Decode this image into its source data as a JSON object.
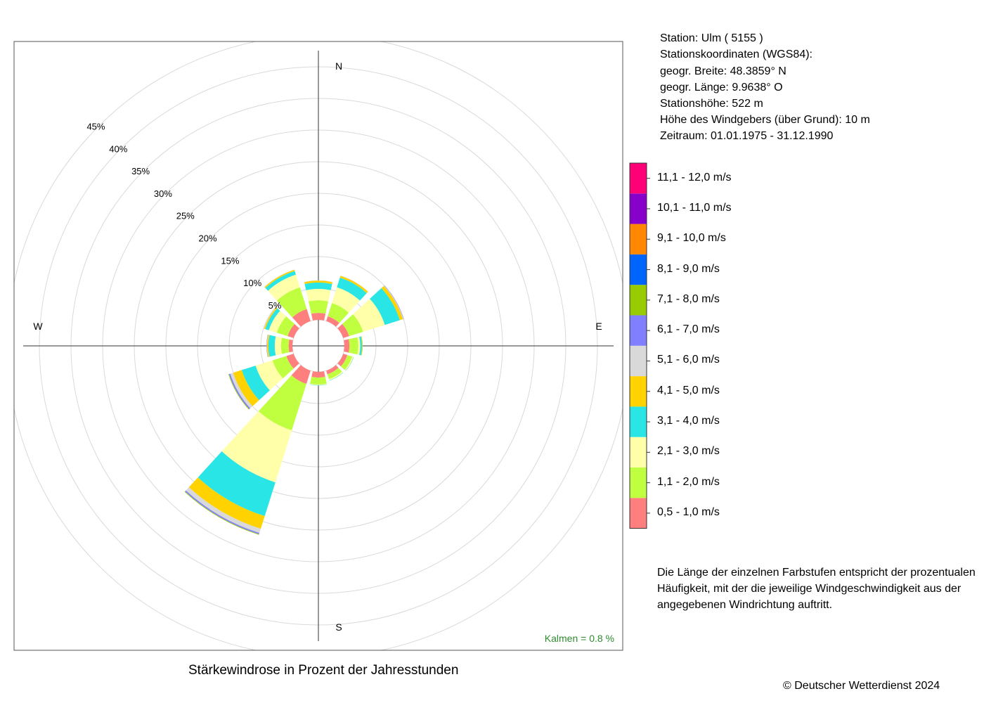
{
  "station_info": [
    "Station:  Ulm  ( 5155 )",
    "Stationskoordinaten (WGS84):",
    "geogr. Breite: 48.3859° N",
    "geogr. Länge:   9.9638° O",
    "Stationshöhe: 522 m",
    "Höhe des Windgebers (über Grund): 10 m",
    "Zeitraum: 01.01.1975 - 31.12.1990"
  ],
  "note_lines": [
    "Die Länge der einzelnen Farbstufen entspricht der prozentualen",
    "Häufigkeit, mit der die jeweilige Windgeschwindigkeit aus der",
    "angegebenen Windrichtung auftritt."
  ],
  "copyright": "© Deutscher Wetterdienst  2024",
  "chart_data": {
    "type": "wind-rose",
    "title": "Stärkewindrose in Prozent der Jahresstunden",
    "calm_label": "Kalmen  =  0.8 %",
    "calm_percent": 0.8,
    "compass_labels": {
      "north": "N",
      "east": "E",
      "south": "S",
      "west": "W"
    },
    "radial_unit": "%",
    "radial_ticks": [
      5,
      10,
      15,
      20,
      25,
      30,
      35,
      40,
      45
    ],
    "radial_tick_labels": [
      "5%",
      "10%",
      "15%",
      "20%",
      "25%",
      "30%",
      "35%",
      "40%",
      "45%"
    ],
    "grid": true,
    "legend_position": "right",
    "speed_classes": [
      {
        "label": "0,5 - 1,0 m/s",
        "color": "#FF7F7F"
      },
      {
        "label": "1,1 - 2,0 m/s",
        "color": "#BFFF3F"
      },
      {
        "label": "2,1 - 3,0 m/s",
        "color": "#FFFFAA"
      },
      {
        "label": "3,1 - 4,0 m/s",
        "color": "#2AE5E5"
      },
      {
        "label": "4,1 - 5,0 m/s",
        "color": "#FFD200"
      },
      {
        "label": "5,1 - 6,0 m/s",
        "color": "#D9D9D9"
      },
      {
        "label": "6,1 - 7,0 m/s",
        "color": "#7F7FFF"
      },
      {
        "label": "7,1 - 8,0 m/s",
        "color": "#99CC00"
      },
      {
        "label": "8,1 - 9,0 m/s",
        "color": "#0064FF"
      },
      {
        "label": "9,1 - 10,0 m/s",
        "color": "#FF8800"
      },
      {
        "label": "10,1 - 11,0 m/s",
        "color": "#8800CC"
      },
      {
        "label": "11,1 - 12,0 m/s",
        "color": "#FF0077"
      }
    ],
    "sectors": [
      {
        "direction_deg": 0,
        "values": [
          1.1,
          2.0,
          1.8,
          1.0,
          0.3,
          0.05,
          0,
          0,
          0,
          0,
          0,
          0
        ]
      },
      {
        "direction_deg": 30,
        "values": [
          0.8,
          2.2,
          2.6,
          1.6,
          0.3,
          0.05,
          0,
          0,
          0,
          0,
          0,
          0
        ]
      },
      {
        "direction_deg": 60,
        "values": [
          1.0,
          2.3,
          3.6,
          2.5,
          0.5,
          0.1,
          0.05,
          0,
          0,
          0,
          0,
          0
        ]
      },
      {
        "direction_deg": 90,
        "values": [
          0.8,
          1.4,
          0.3,
          0.3,
          0.1,
          0,
          0,
          0,
          0,
          0,
          0,
          0
        ]
      },
      {
        "direction_deg": 120,
        "values": [
          0.7,
          0.8,
          0.2,
          0.05,
          0,
          0,
          0,
          0,
          0,
          0,
          0,
          0
        ]
      },
      {
        "direction_deg": 150,
        "values": [
          0.6,
          0.8,
          0.2,
          0.05,
          0,
          0,
          0,
          0,
          0,
          0,
          0,
          0
        ]
      },
      {
        "direction_deg": 180,
        "values": [
          0.9,
          1.1,
          0.1,
          0.05,
          0,
          0,
          0,
          0,
          0,
          0,
          0,
          0
        ]
      },
      {
        "direction_deg": 210,
        "values": [
          2.2,
          7.7,
          8.6,
          5.6,
          2.1,
          0.7,
          0.2,
          0.1,
          0,
          0,
          0,
          0
        ]
      },
      {
        "direction_deg": 240,
        "values": [
          1.2,
          2.3,
          2.8,
          2.3,
          1.4,
          0.5,
          0.2,
          0.1,
          0,
          0,
          0,
          0
        ]
      },
      {
        "direction_deg": 270,
        "values": [
          0.6,
          1.2,
          1.0,
          1.0,
          0.2,
          0.05,
          0.05,
          0,
          0,
          0,
          0,
          0
        ]
      },
      {
        "direction_deg": 300,
        "values": [
          1.0,
          1.8,
          1.3,
          0.6,
          0.2,
          0.05,
          0,
          0,
          0,
          0,
          0,
          0
        ]
      },
      {
        "direction_deg": 330,
        "values": [
          2.0,
          3.6,
          2.1,
          0.6,
          0.2,
          0.05,
          0,
          0,
          0,
          0,
          0,
          0
        ]
      }
    ]
  }
}
